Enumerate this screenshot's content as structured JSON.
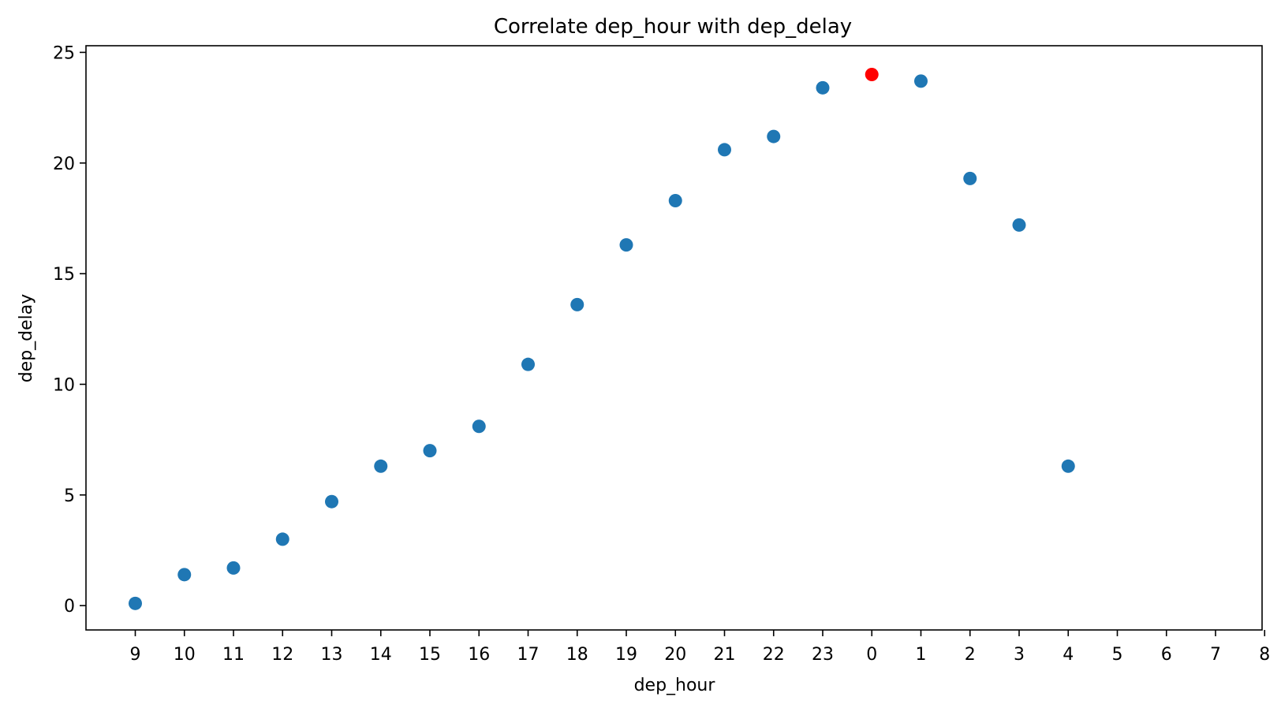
{
  "chart_data": {
    "type": "scatter",
    "title": "Correlate dep_hour with dep_delay",
    "xlabel": "dep_hour",
    "ylabel": "dep_delay",
    "x_categories": [
      "9",
      "10",
      "11",
      "12",
      "13",
      "14",
      "15",
      "16",
      "17",
      "18",
      "19",
      "20",
      "21",
      "22",
      "23",
      "0",
      "1",
      "2",
      "3",
      "4",
      "5",
      "6",
      "7",
      "8"
    ],
    "y_ticks": [
      0,
      5,
      10,
      15,
      20,
      25
    ],
    "ylim": [
      -1.1,
      25.3
    ],
    "grid": false,
    "legend": "none",
    "colors": {
      "point": "#1f77b4",
      "highlight": "#ff0000",
      "axis": "#000000"
    },
    "points": [
      {
        "x": "9",
        "y": 0.1
      },
      {
        "x": "10",
        "y": 1.4
      },
      {
        "x": "11",
        "y": 1.7
      },
      {
        "x": "12",
        "y": 3.0
      },
      {
        "x": "13",
        "y": 4.7
      },
      {
        "x": "14",
        "y": 6.3
      },
      {
        "x": "15",
        "y": 7.0
      },
      {
        "x": "16",
        "y": 8.1
      },
      {
        "x": "17",
        "y": 10.9
      },
      {
        "x": "18",
        "y": 13.6
      },
      {
        "x": "19",
        "y": 16.3
      },
      {
        "x": "20",
        "y": 18.3
      },
      {
        "x": "21",
        "y": 20.6
      },
      {
        "x": "22",
        "y": 21.2
      },
      {
        "x": "23",
        "y": 23.4
      },
      {
        "x": "0",
        "y": 24.0,
        "highlight": true
      },
      {
        "x": "1",
        "y": 23.7
      },
      {
        "x": "2",
        "y": 19.3
      },
      {
        "x": "3",
        "y": 17.2
      },
      {
        "x": "4",
        "y": 6.3
      }
    ]
  }
}
